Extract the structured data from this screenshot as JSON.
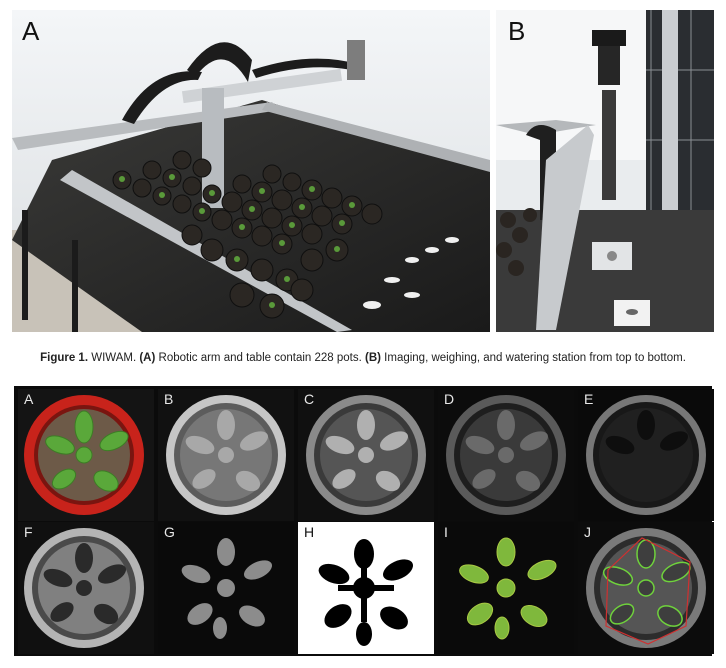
{
  "figure_top": {
    "panel_a_label": "A",
    "panel_b_label": "B"
  },
  "caption": {
    "figure_label": "Figure 1.",
    "title": " WIWAM. ",
    "part_a_tag": "(A)",
    "part_a_text": " Robotic arm and table contain 228 pots. ",
    "part_b_tag": "(B)",
    "part_b_text": " Imaging, weighing, and watering station from top to bottom."
  },
  "panels": [
    {
      "label": "A",
      "style": "color-red-pot"
    },
    {
      "label": "B",
      "style": "gray-bright"
    },
    {
      "label": "C",
      "style": "gray-mid"
    },
    {
      "label": "D",
      "style": "gray-dark"
    },
    {
      "label": "E",
      "style": "very-dark"
    },
    {
      "label": "F",
      "style": "gray-dark-plant"
    },
    {
      "label": "G",
      "style": "plant-only-gray"
    },
    {
      "label": "H",
      "style": "binary-mask"
    },
    {
      "label": "I",
      "style": "plant-only-color"
    },
    {
      "label": "J",
      "style": "segmented-outline"
    }
  ],
  "colors": {
    "pot_red": "#c8231b",
    "leaf_green": "#5aa83a",
    "leaf_yellow_green": "#a9c944",
    "outline_red": "#d03030",
    "outline_green": "#6fd23c"
  }
}
